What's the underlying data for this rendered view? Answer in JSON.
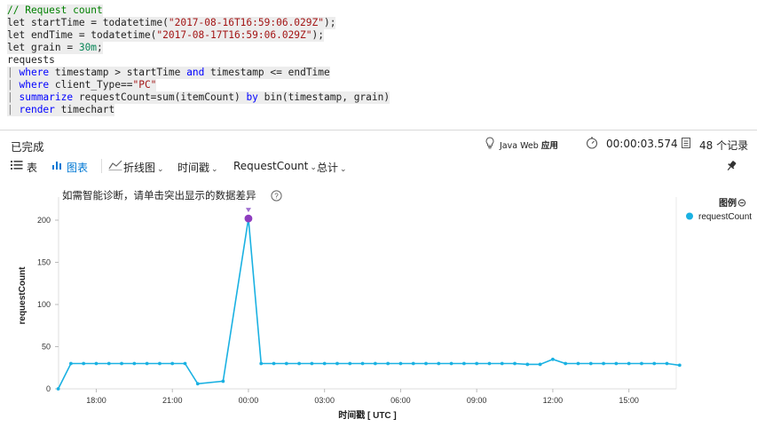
{
  "query": {
    "comment": "// Request count",
    "line2": {
      "pre": "let startTime = todatetime(",
      "str": "\"2017-08-16T16:59:06.029Z\"",
      "post": ");"
    },
    "line3": {
      "pre": "let endTime = todatetime(",
      "str": "\"2017-08-17T16:59:06.029Z\"",
      "post": ");"
    },
    "line4": {
      "pre": "let grain = ",
      "num": "30m",
      "post": ";"
    },
    "line5": "requests",
    "line6": {
      "pipe": "| ",
      "kw1": "where",
      "mid": " timestamp > startTime ",
      "kw2": "and",
      "post": " timestamp <= endTime"
    },
    "line7": {
      "pipe": "| ",
      "kw1": "where",
      "mid": " client_Type==",
      "str": "\"PC\""
    },
    "line8": {
      "pipe": "| ",
      "kw1": "summarize",
      "mid": " requestCount=sum(itemCount) ",
      "kw2": "by",
      "post": " bin(timestamp, grain)"
    },
    "line9": {
      "pipe": "| ",
      "kw1": "render",
      "post": " timechart"
    }
  },
  "status": {
    "state": "已完成",
    "app_label": "Java Web",
    "app_suffix": "应用",
    "duration": "00:00:03.574",
    "records": "48 个记录"
  },
  "toolbar": {
    "table_tab": "表",
    "chart_tab": "图表",
    "chart_type": "折线图",
    "x_field": "时间戳",
    "y_field": "RequestCount",
    "aggregation": "总计"
  },
  "hint": "如需智能诊断，请单击突出显示的数据差异",
  "legend_title": "图例",
  "colors": {
    "series": "#1ab1e2",
    "anomaly": "#8e3dbf",
    "accent": "#0078d4"
  },
  "icons": {
    "table": "table-icon",
    "chart": "chart-icon",
    "line": "line-chart-icon",
    "pin": "pin-icon",
    "help": "help-icon",
    "timer": "timer-icon",
    "records": "records-icon",
    "lightbulb": "lightbulb-icon"
  },
  "chart_data": {
    "type": "line",
    "x_start": "2017-08-16T16:30:00Z",
    "x_step_minutes": 30,
    "x_tick_labels": [
      "18:00",
      "21:00",
      "00:00",
      "03:00",
      "06:00",
      "09:00",
      "12:00",
      "15:00"
    ],
    "y_ticks": [
      0,
      50,
      100,
      150,
      200
    ],
    "ylim": [
      0,
      220
    ],
    "xlabel": "时间戳 [ UTC ]",
    "ylabel": "requestCount",
    "legend_position": "top-right",
    "grid": false,
    "anomaly_index": 15,
    "series": [
      {
        "name": "requestCount",
        "values": [
          0,
          30,
          30,
          30,
          30,
          30,
          30,
          30,
          30,
          30,
          30,
          6,
          null,
          9,
          null,
          202,
          30,
          30,
          30,
          30,
          30,
          30,
          30,
          30,
          30,
          30,
          30,
          30,
          30,
          30,
          30,
          30,
          30,
          30,
          30,
          30,
          30,
          29,
          29,
          35,
          30,
          30,
          30,
          30,
          30,
          30,
          30,
          30,
          30,
          28
        ]
      }
    ]
  }
}
